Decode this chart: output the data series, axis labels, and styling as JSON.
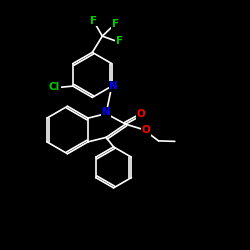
{
  "background_color": "#000000",
  "bond_color": "#ffffff",
  "atom_colors": {
    "N_pyridine": "#0000ff",
    "N_indole": "#0000ff",
    "O": "#ff0000",
    "F": "#00cc00",
    "Cl": "#00cc00"
  },
  "figsize": [
    2.5,
    2.5
  ],
  "dpi": 100,
  "xlim": [
    0,
    10
  ],
  "ylim": [
    0,
    10
  ]
}
